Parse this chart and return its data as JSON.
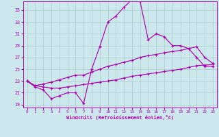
{
  "xlabel": "Windchill (Refroidissement éolien,°C)",
  "x_ticks": [
    0,
    1,
    2,
    3,
    4,
    5,
    6,
    7,
    8,
    9,
    10,
    11,
    12,
    13,
    14,
    15,
    16,
    17,
    18,
    19,
    20,
    21,
    22,
    23
  ],
  "y_ticks": [
    19,
    21,
    23,
    25,
    27,
    29,
    31,
    33,
    35
  ],
  "xlim": [
    -0.5,
    23.5
  ],
  "ylim": [
    18.5,
    36.5
  ],
  "background_color": "#cce8ec",
  "grid_color": "#aacccc",
  "line_color": "#aa00aa",
  "line1_y": [
    23.0,
    22.0,
    21.5,
    20.0,
    20.5,
    21.0,
    21.0,
    19.2,
    25.0,
    28.8,
    33.0,
    34.0,
    35.5,
    36.8,
    36.5,
    30.0,
    31.0,
    30.5,
    29.0,
    29.0,
    28.5,
    27.0,
    25.5,
    25.5
  ],
  "line2_y": [
    23.0,
    22.2,
    22.5,
    22.8,
    23.2,
    23.6,
    24.0,
    24.0,
    24.5,
    25.0,
    25.5,
    25.8,
    26.2,
    26.5,
    27.0,
    27.3,
    27.5,
    27.8,
    28.0,
    28.2,
    28.5,
    28.8,
    27.0,
    26.0
  ],
  "line3_y": [
    23.0,
    22.2,
    22.0,
    21.8,
    21.8,
    22.0,
    22.2,
    22.4,
    22.6,
    22.8,
    23.0,
    23.2,
    23.5,
    23.8,
    24.0,
    24.2,
    24.4,
    24.6,
    24.8,
    25.0,
    25.3,
    25.6,
    25.7,
    25.8
  ]
}
